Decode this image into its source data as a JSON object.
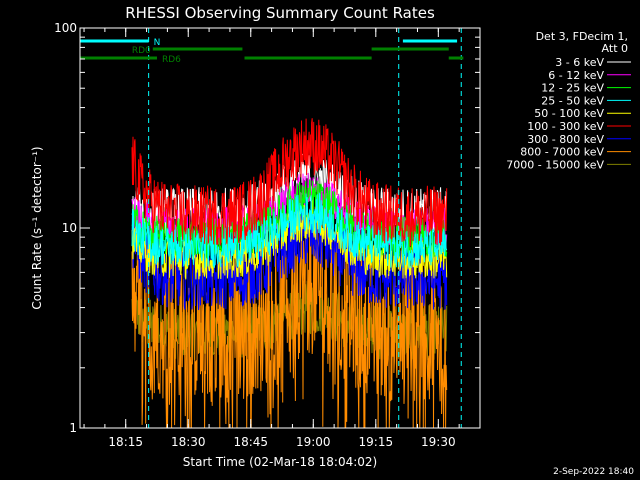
{
  "chart_data": {
    "type": "line",
    "title": "RHESSI Observing Summary Count Rates",
    "xlabel": "Start Time (02-Mar-18 18:04:02)",
    "ylabel": "Count Rate (s⁻¹ detector⁻¹)",
    "y_scale": "log",
    "ylim": [
      1,
      100
    ],
    "y_ticks": [
      {
        "value": 1,
        "label": "1"
      },
      {
        "value": 10,
        "label": "10"
      },
      {
        "value": 100,
        "label": "100"
      }
    ],
    "x_ticks": [
      "18:15",
      "18:30",
      "18:45",
      "19:00",
      "19:15",
      "19:30"
    ],
    "x_tick_minutes": [
      15,
      30,
      45,
      60,
      75,
      90
    ],
    "xlim_minutes": [
      4.03,
      100
    ],
    "legend_header": [
      "Det 3, FDecim 1,",
      "Att 0"
    ],
    "legend_position": "right",
    "series": [
      {
        "name": "3 - 6 keV",
        "color": "#ffffff",
        "start": 12,
        "base": 12,
        "peak": 18,
        "noise": 0.18
      },
      {
        "name": "6 - 12 keV",
        "color": "#ff00ff",
        "start": 12,
        "base": 10,
        "peak": 15,
        "noise": 0.15
      },
      {
        "name": "12 - 25 keV",
        "color": "#00ff00",
        "start": 11,
        "base": 9,
        "peak": 14,
        "noise": 0.15
      },
      {
        "name": "25 - 50 keV",
        "color": "#00ffff",
        "start": 10,
        "base": 8,
        "peak": 12,
        "noise": 0.15
      },
      {
        "name": "50 - 100 keV",
        "color": "#ffff00",
        "start": 9,
        "base": 7,
        "peak": 11,
        "noise": 0.15
      },
      {
        "name": "100 - 300 keV",
        "color": "#ff0000",
        "start": 22,
        "base": 11.5,
        "peak": 26,
        "noise": 0.22
      },
      {
        "name": "300 - 800 keV",
        "color": "#0000ff",
        "start": 9,
        "base": 5.5,
        "peak": 9,
        "noise": 0.22
      },
      {
        "name": "800 - 7000 keV",
        "color": "#ff8c00",
        "start": 6,
        "base": 3.2,
        "peak": 5.5,
        "noise": 0.55
      },
      {
        "name": "7000 - 15000 keV",
        "color": "#808000",
        "start": 4,
        "base": 3,
        "peak": 4,
        "noise": 0.2
      }
    ],
    "x_range_minutes": [
      16.5,
      92
    ],
    "peak_center_minutes": 59,
    "peak_width_minutes": 9,
    "state_bars": [
      {
        "label": "N",
        "color": "#00ffff",
        "segments": [
          [
            4.03,
            20.5
          ],
          [
            81.5,
            94.5
          ]
        ]
      },
      {
        "label": "RD0",
        "color": "#008000",
        "segments": [
          [
            21.5,
            43
          ],
          [
            74,
            92.5
          ]
        ]
      },
      {
        "label": "RD6",
        "color": "#008000",
        "segments": [
          [
            4.03,
            22.5
          ],
          [
            43.5,
            74
          ],
          [
            92.5,
            96
          ]
        ]
      }
    ],
    "vlines_minutes": [
      4.03,
      20.5,
      80.5,
      95.5
    ],
    "footer_date": "2-Sep-2022 18:40"
  }
}
